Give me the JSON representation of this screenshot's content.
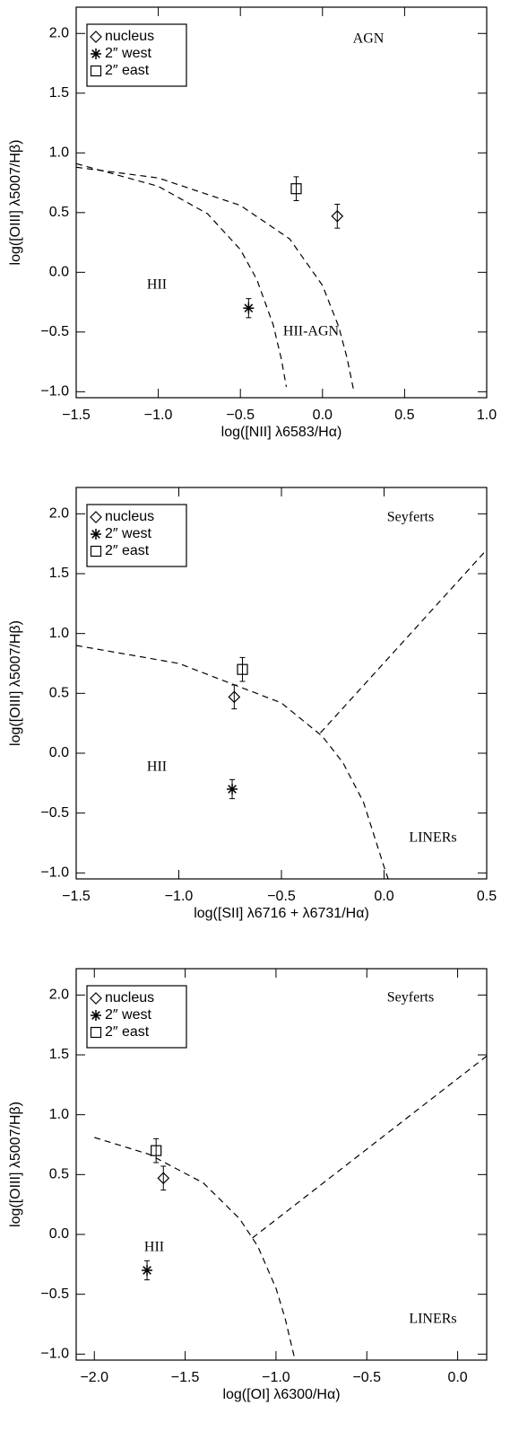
{
  "chart_data": [
    {
      "type": "scatter",
      "color": "#000000",
      "legend": "top-left",
      "xlabel": "log([NII] λ6583/Hα)",
      "ylabel": "log([OIII] λ5007/Hβ)",
      "xlim": [
        -1.5,
        1.0
      ],
      "ylim": [
        -1.05,
        2.22
      ],
      "xticks": [
        {
          "value": -1.5,
          "label": "−1.5"
        },
        {
          "value": -1,
          "label": "−1.0"
        },
        {
          "value": -0.5,
          "label": "−0.5"
        },
        {
          "value": 0,
          "label": "0.0"
        },
        0.5,
        {
          "value": 1,
          "label": "1.0"
        }
      ],
      "yticks": [
        {
          "value": -1,
          "label": "−1.0"
        },
        {
          "value": -0.5,
          "label": "−0.5"
        },
        {
          "value": 0,
          "label": "0.0"
        },
        0.5,
        {
          "value": 1,
          "label": "1.0"
        },
        1.5,
        {
          "value": 2,
          "label": "2.0"
        }
      ],
      "annotations": [
        "AGN",
        "HII",
        "HII-AGN"
      ],
      "series": [
        {
          "name": "nucleus",
          "marker": "diamond",
          "x": [
            0.09
          ],
          "values": [
            0.47
          ],
          "errors": [
            0.1
          ]
        },
        {
          "name": "2″ west",
          "marker": "asterisk",
          "x": [
            -0.45
          ],
          "values": [
            -0.3
          ],
          "errors": [
            0.08
          ]
        },
        {
          "name": "2″ east",
          "marker": "square",
          "x": [
            -0.16
          ],
          "values": [
            0.7
          ],
          "errors": [
            0.1
          ]
        }
      ],
      "curves": [
        {
          "style": "dashed",
          "x": [
            -1.5,
            -1.0,
            -0.5,
            -0.2,
            0,
            0.1,
            0.15,
            0.19
          ],
          "values": [
            0.88,
            0.79,
            0.56,
            0.28,
            -0.11,
            -0.46,
            -0.72,
            -0.99
          ]
        },
        {
          "style": "dashed",
          "x": [
            -1.5,
            -1.0,
            -0.7,
            -0.5,
            -0.4,
            -0.3,
            -0.25,
            -0.22
          ],
          "values": [
            0.91,
            0.72,
            0.49,
            0.19,
            -0.06,
            -0.44,
            -0.73,
            -0.96
          ]
        }
      ]
    },
    {
      "type": "scatter",
      "color": "#000000",
      "legend": "top-left",
      "xlabel": "log([SII] λ6716 + λ6731/Hα)",
      "ylabel": "log([OIII] λ5007/Hβ)",
      "xlim": [
        -1.5,
        0.5
      ],
      "ylim": [
        -1.05,
        2.22
      ],
      "xticks": [
        {
          "value": -1.5,
          "label": "−1.5"
        },
        {
          "value": -1,
          "label": "−1.0"
        },
        {
          "value": -0.5,
          "label": "−0.5"
        },
        {
          "value": 0,
          "label": "0.0"
        },
        0.5
      ],
      "yticks": [
        {
          "value": -1,
          "label": "−1.0"
        },
        {
          "value": -0.5,
          "label": "−0.5"
        },
        {
          "value": 0,
          "label": "0.0"
        },
        0.5,
        {
          "value": 1,
          "label": "1.0"
        },
        1.5,
        {
          "value": 2,
          "label": "2.0"
        }
      ],
      "annotations": [
        "Seyferts",
        "HII",
        "LINERs"
      ],
      "series": [
        {
          "name": "nucleus",
          "marker": "diamond",
          "x": [
            -0.73
          ],
          "values": [
            0.47
          ],
          "errors": [
            0.1
          ]
        },
        {
          "name": "2″ west",
          "marker": "asterisk",
          "x": [
            -0.74
          ],
          "values": [
            -0.3
          ],
          "errors": [
            0.08
          ]
        },
        {
          "name": "2″ east",
          "marker": "square",
          "x": [
            -0.69
          ],
          "values": [
            0.7
          ],
          "errors": [
            0.1
          ]
        }
      ],
      "curves": [
        {
          "style": "dashed",
          "x": [
            -1.5,
            -1.0,
            -0.5,
            -0.3,
            -0.2,
            -0.1,
            0,
            0.02
          ],
          "values": [
            0.9,
            0.75,
            0.42,
            0.14,
            -0.08,
            -0.41,
            -0.95,
            -1.05
          ]
        },
        {
          "style": "dashed",
          "x": [
            -0.31,
            0.5
          ],
          "values": [
            0.17,
            1.7
          ]
        }
      ]
    },
    {
      "type": "scatter",
      "color": "#000000",
      "legend": "top-left",
      "xlabel": "log([OI] λ6300/Hα)",
      "ylabel": "log([OIII] λ5007/Hβ)",
      "xlim": [
        -2.1,
        0.16
      ],
      "ylim": [
        -1.05,
        2.22
      ],
      "xticks": [
        {
          "value": -2,
          "label": "−2.0"
        },
        {
          "value": -1.5,
          "label": "−1.5"
        },
        {
          "value": -1,
          "label": "−1.0"
        },
        {
          "value": -0.5,
          "label": "−0.5"
        },
        {
          "value": 0,
          "label": "0.0"
        }
      ],
      "yticks": [
        {
          "value": -1,
          "label": "−1.0"
        },
        {
          "value": -0.5,
          "label": "−0.5"
        },
        {
          "value": 0,
          "label": "0.0"
        },
        0.5,
        {
          "value": 1,
          "label": "1.0"
        },
        1.5,
        {
          "value": 2,
          "label": "2.0"
        }
      ],
      "annotations": [
        "Seyferts",
        "HII",
        "LINERs"
      ],
      "series": [
        {
          "name": "nucleus",
          "marker": "diamond",
          "x": [
            -1.62
          ],
          "values": [
            0.47
          ],
          "errors": [
            0.1
          ]
        },
        {
          "name": "2″ west",
          "marker": "asterisk",
          "x": [
            -1.71
          ],
          "values": [
            -0.3
          ],
          "errors": [
            0.08
          ]
        },
        {
          "name": "2″ east",
          "marker": "square",
          "x": [
            -1.66
          ],
          "values": [
            0.7
          ],
          "errors": [
            0.1
          ]
        }
      ],
      "curves": [
        {
          "style": "dashed",
          "x": [
            -2.0,
            -1.7,
            -1.4,
            -1.2,
            -1.1,
            -1.0,
            -0.95,
            -0.9
          ],
          "values": [
            0.81,
            0.67,
            0.43,
            0.13,
            -0.1,
            -0.45,
            -0.7,
            -1.02
          ]
        },
        {
          "style": "dashed",
          "x": [
            -1.13,
            0.16
          ],
          "values": [
            -0.03,
            1.49
          ]
        }
      ]
    }
  ]
}
